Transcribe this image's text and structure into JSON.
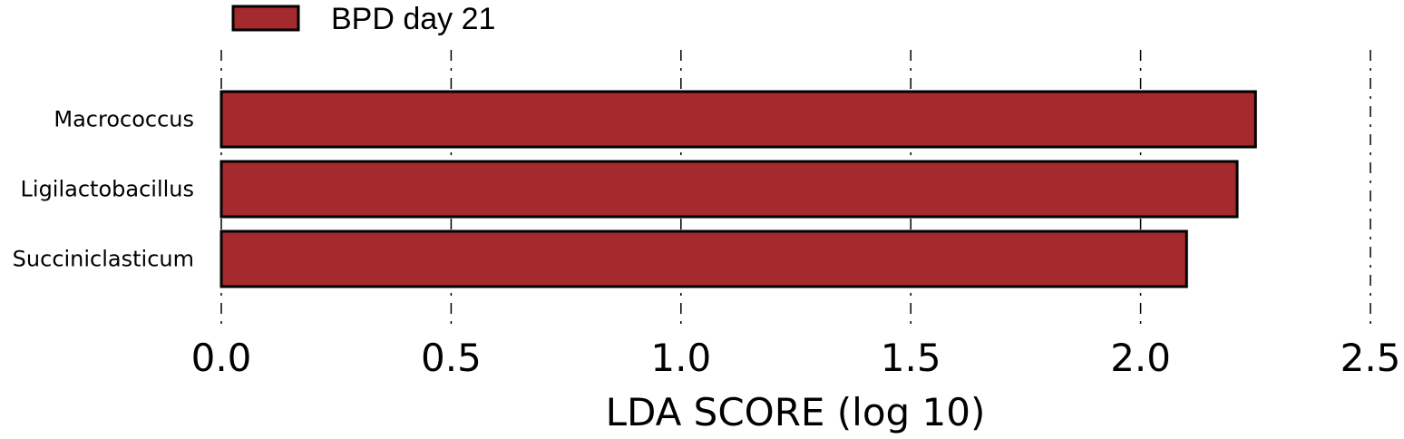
{
  "chart_data": {
    "type": "bar",
    "orientation": "horizontal",
    "categories": [
      "Macrococcus",
      "Ligilactobacillus",
      "Succiniclasticum"
    ],
    "series": [
      {
        "name": "BPD day 21",
        "values": [
          2.25,
          2.21,
          2.1
        ],
        "color": "#a52a2e"
      }
    ],
    "xlabel": "LDA SCORE (log 10)",
    "xlim": [
      0,
      2.5
    ],
    "xticks": [
      "0.0",
      "0.5",
      "1.0",
      "1.5",
      "2.0",
      "2.5"
    ],
    "grid": "vertical dash-dot",
    "legend": "top-left"
  }
}
